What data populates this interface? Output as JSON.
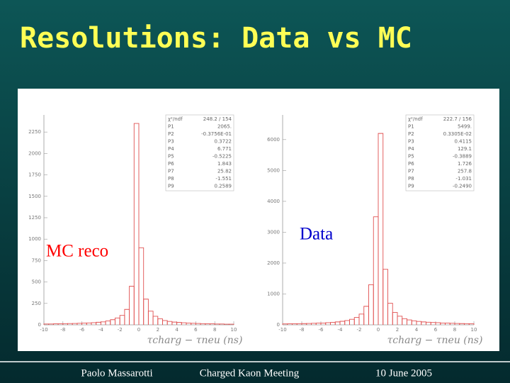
{
  "slide": {
    "title": "Resolutions: Data vs MC",
    "footer": [
      "Paolo Massarotti",
      "Charged Kaon Meeting",
      "10 June 2005"
    ]
  },
  "chart_data": [
    {
      "type": "histogram",
      "annotation": "MC reco",
      "annotation_color": "#ff0000",
      "xlabel": "τcharg − τneu (ns)",
      "color": "#e05050",
      "bins": [
        -10,
        -9.5,
        -9,
        -8.5,
        -8,
        -7.5,
        -7,
        -6.5,
        -6,
        -5.5,
        -5,
        -4.5,
        -4,
        -3.5,
        -3,
        -2.5,
        -2,
        -1.5,
        -1,
        -0.5,
        0,
        0.5,
        1,
        1.5,
        2,
        2.5,
        3,
        3.5,
        4,
        4.5,
        5,
        5.5,
        6,
        6.5,
        7,
        7.5,
        8,
        8.5,
        9,
        9.5,
        10
      ],
      "values": [
        10,
        10,
        12,
        12,
        14,
        15,
        16,
        18,
        20,
        22,
        25,
        30,
        35,
        45,
        60,
        80,
        110,
        180,
        450,
        2350,
        900,
        300,
        160,
        100,
        70,
        50,
        40,
        32,
        28,
        24,
        20,
        18,
        16,
        14,
        12,
        12,
        10,
        10,
        8,
        8
      ],
      "xlim": [
        -10,
        10
      ],
      "xticks": [
        -10,
        -8,
        -6,
        -4,
        -2,
        0,
        2,
        4,
        6,
        8,
        10
      ],
      "ylim": [
        0,
        2450
      ],
      "yticks": [
        0,
        250,
        500,
        750,
        1000,
        1250,
        1500,
        1750,
        2000,
        2250
      ],
      "stats": [
        {
          "label": "χ²/ndf",
          "value": "248.2  /  154"
        },
        {
          "label": "P1",
          "value": "2065."
        },
        {
          "label": "P2",
          "value": "-0.3756E-01"
        },
        {
          "label": "P3",
          "value": "0.3722"
        },
        {
          "label": "P4",
          "value": "6.771"
        },
        {
          "label": "P5",
          "value": "-0.5225"
        },
        {
          "label": "P6",
          "value": "1.843"
        },
        {
          "label": "P7",
          "value": "25.82"
        },
        {
          "label": "P8",
          "value": "-1.551"
        },
        {
          "label": "P9",
          "value": "0.2589"
        }
      ]
    },
    {
      "type": "histogram",
      "annotation": "Data",
      "annotation_color": "#0000cc",
      "xlabel": "τcharg − τneu (ns)",
      "color": "#e05050",
      "bins": [
        -10,
        -9.5,
        -9,
        -8.5,
        -8,
        -7.5,
        -7,
        -6.5,
        -6,
        -5.5,
        -5,
        -4.5,
        -4,
        -3.5,
        -3,
        -2.5,
        -2,
        -1.5,
        -1,
        -0.5,
        0,
        0.5,
        1,
        1.5,
        2,
        2.5,
        3,
        3.5,
        4,
        4.5,
        5,
        5.5,
        6,
        6.5,
        7,
        7.5,
        8,
        8.5,
        9,
        9.5,
        10
      ],
      "values": [
        30,
        32,
        35,
        38,
        40,
        45,
        50,
        55,
        60,
        70,
        80,
        95,
        115,
        140,
        180,
        240,
        350,
        600,
        1300,
        3500,
        6200,
        1800,
        700,
        400,
        280,
        200,
        160,
        130,
        110,
        95,
        85,
        75,
        70,
        60,
        55,
        50,
        45,
        40,
        38,
        35
      ],
      "xlim": [
        -10,
        10
      ],
      "xticks": [
        -10,
        -8,
        -6,
        -4,
        -2,
        0,
        2,
        4,
        6,
        8,
        10
      ],
      "ylim": [
        0,
        6800
      ],
      "yticks": [
        0,
        1000,
        2000,
        3000,
        4000,
        5000,
        6000
      ],
      "stats": [
        {
          "label": "χ²/ndf",
          "value": "222.7  /  156"
        },
        {
          "label": "P1",
          "value": "5499."
        },
        {
          "label": "P2",
          "value": "0.3305E-02"
        },
        {
          "label": "P3",
          "value": "0.4115"
        },
        {
          "label": "P4",
          "value": "129.1"
        },
        {
          "label": "P5",
          "value": "-0.3889"
        },
        {
          "label": "P6",
          "value": "1.726"
        },
        {
          "label": "P7",
          "value": "257.8"
        },
        {
          "label": "P8",
          "value": "-1.031"
        },
        {
          "label": "P9",
          "value": "-0.2490"
        }
      ]
    }
  ]
}
